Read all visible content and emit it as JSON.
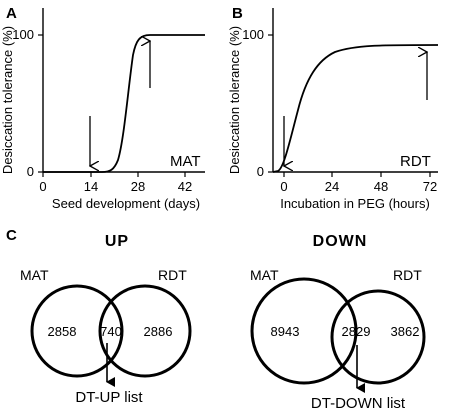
{
  "panel_a": {
    "letter": "A",
    "ylabel": "Desiccation tolerance (%)",
    "xlabel": "Seed development (days)",
    "tag": "MAT",
    "xticks": [
      "0",
      "14",
      "28",
      "42"
    ],
    "yticks": [
      "0",
      "100"
    ]
  },
  "panel_b": {
    "letter": "B",
    "ylabel": "Desiccation tolerance (%)",
    "xlabel": "Incubation in PEG (hours)",
    "tag": "RDT",
    "xticks": [
      "0",
      "24",
      "48",
      "72"
    ],
    "yticks": [
      "0",
      "100"
    ]
  },
  "panel_c": {
    "letter": "C",
    "up": {
      "title": "UP",
      "left_label": "MAT",
      "right_label": "RDT",
      "left_only": "2858",
      "overlap": "740",
      "right_only": "2886",
      "list_label": "DT-UP list"
    },
    "down": {
      "title": "DOWN",
      "left_label": "MAT",
      "right_label": "RDT",
      "left_only": "8943",
      "overlap": "2829",
      "right_only": "3862",
      "list_label": "DT-DOWN list"
    }
  },
  "colors": {
    "line": "#000000",
    "background": "#ffffff"
  }
}
